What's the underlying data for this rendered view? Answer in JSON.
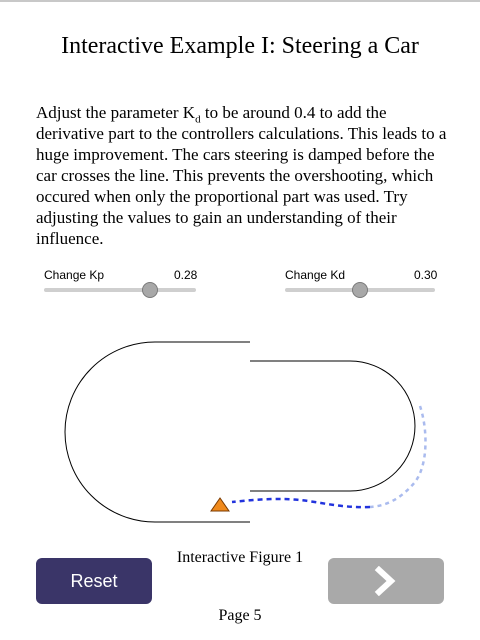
{
  "page": {
    "title": "Interactive Example I: Steering a Car",
    "paragraph": {
      "before": "Adjust the parameter K",
      "sub": "d",
      "after": " to be around 0.4 to add the derivative part to the controllers calculations. This leads to a huge improvement. The cars steering is damped before the car crosses the line. This prevents the overshooting, which occured when only the proportional part was used. Try adjusting the values to gain an understanding of their influence."
    },
    "figure_caption": "Interactive Figure 1",
    "page_number": "Page 5"
  },
  "controls": {
    "kp": {
      "label": "Change Kp",
      "value": "0.28",
      "fraction": 0.7
    },
    "kd": {
      "label": "Change Kd",
      "value": "0.30",
      "fraction": 0.5
    }
  },
  "buttons": {
    "reset_label": "Reset",
    "next_icon": "chevron-right-icon"
  },
  "colors": {
    "reset_bg": "#3a3568",
    "next_bg": "#a9a9a9",
    "car": "#f08a1c",
    "path_trace": "#2233dd",
    "trace_faded": "#aabbee"
  }
}
